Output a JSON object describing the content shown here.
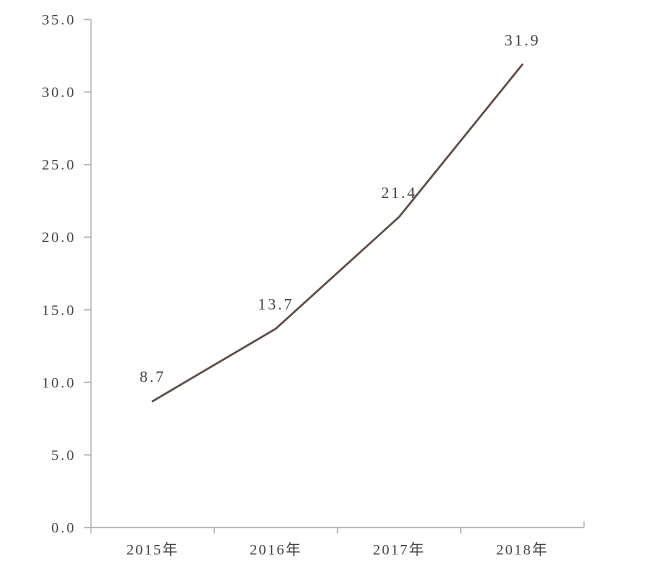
{
  "page": {
    "background": "#ffffff"
  },
  "chart_data": {
    "type": "line",
    "title": "",
    "xlabel": "",
    "ylabel": "",
    "categories": [
      "2015年",
      "2016年",
      "2017年",
      "2018年"
    ],
    "values": [
      8.7,
      13.7,
      21.4,
      31.9
    ],
    "data_labels": [
      "8.7",
      "13.7",
      "21.4",
      "31.9"
    ],
    "ylim": [
      0,
      35
    ],
    "ytick_step": 5,
    "ytick_labels": [
      "0.0",
      "5.0",
      "10.0",
      "15.0",
      "20.0",
      "25.0",
      "30.0",
      "35.0"
    ],
    "grid": false,
    "legend": "none",
    "markers": false,
    "colors": {
      "line": "#5a4a43",
      "axis": "#b3b3b3",
      "text": "#404040"
    }
  }
}
